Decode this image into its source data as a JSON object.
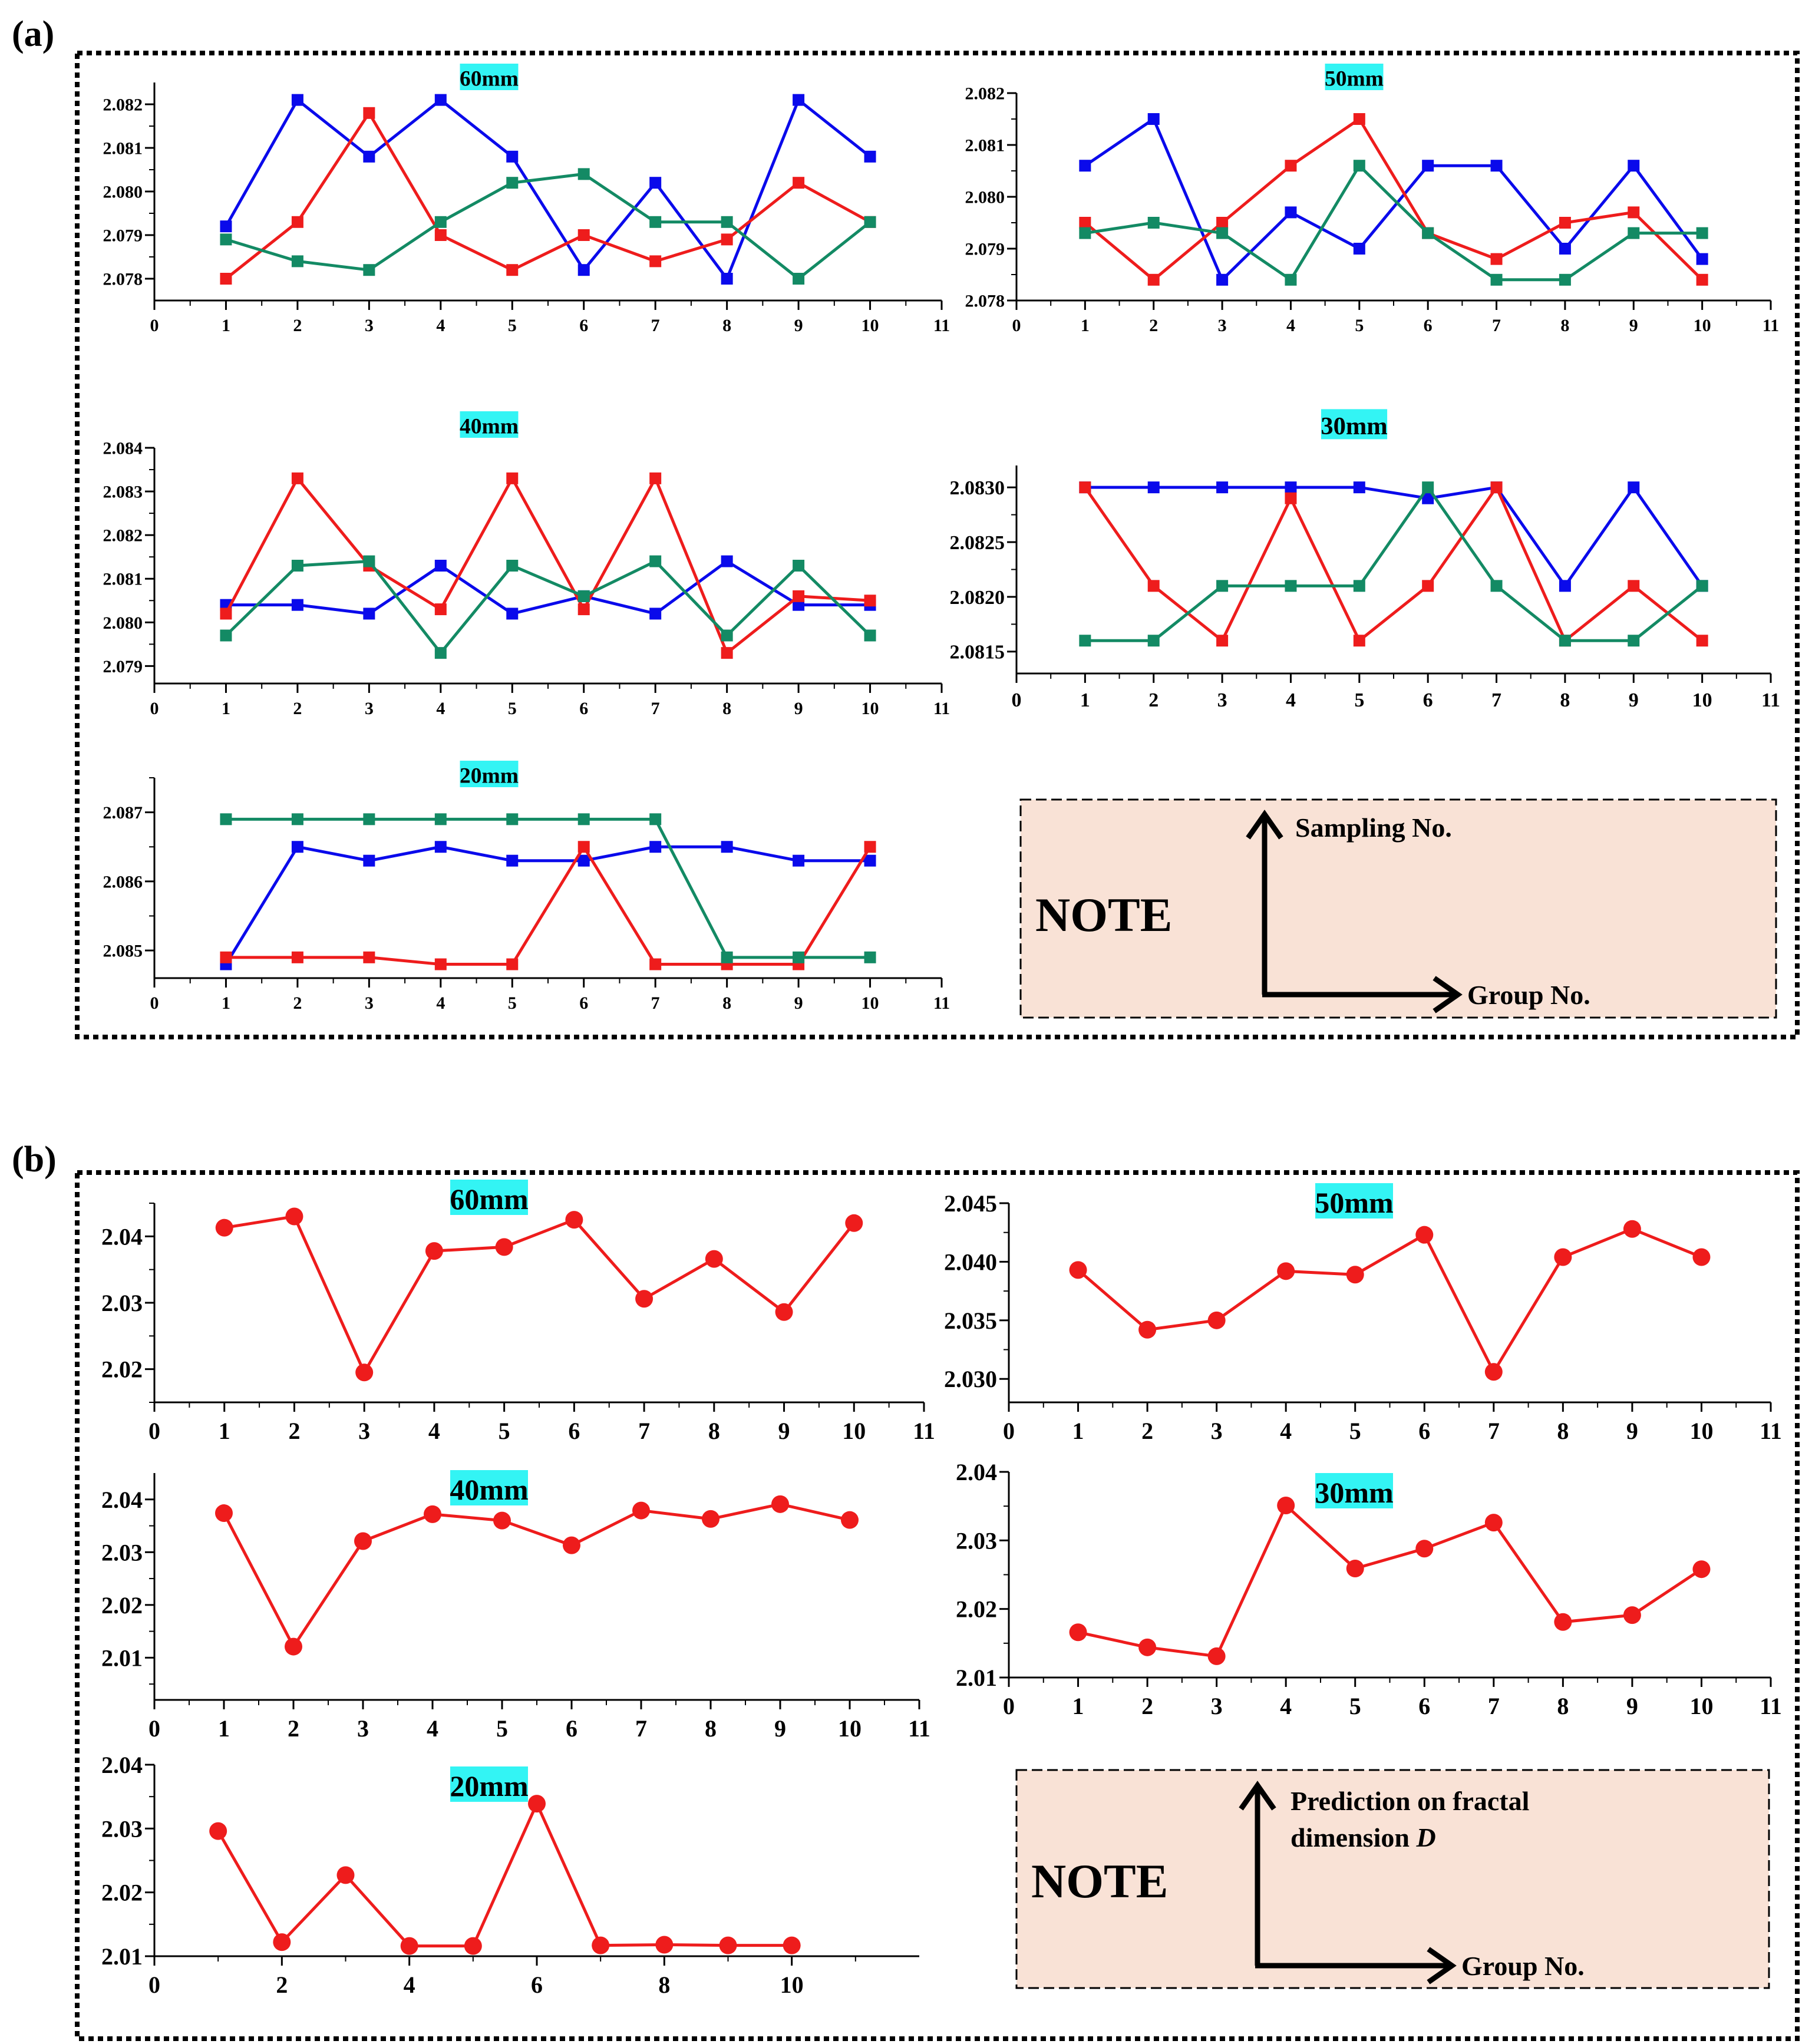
{
  "panels": [
    {
      "label": "(a)",
      "note": {
        "title": "NOTE",
        "y_axis_label": "Sampling No.",
        "x_axis_label": "Group No."
      }
    },
    {
      "label": "(b)",
      "note": {
        "title": "NOTE",
        "y_axis_label_lines": [
          "Prediction on fractal",
          "dimension "
        ],
        "y_axis_label_italic": "D",
        "x_axis_label": "Group No."
      }
    }
  ],
  "colors": {
    "blue": "#0a0aeb",
    "red": "#ee1c1c",
    "green": "#138a64",
    "title_bg": "#33f4f4",
    "note_bg": "#f9e2d6"
  },
  "chart_data": [
    {
      "id": "a-60mm",
      "panel": "(a)",
      "type": "line",
      "title": "60mm",
      "x": [
        1,
        2,
        3,
        4,
        5,
        6,
        7,
        8,
        9,
        10
      ],
      "xlim": [
        0,
        11
      ],
      "xticks": [
        0,
        1,
        2,
        3,
        4,
        5,
        6,
        7,
        8,
        9,
        10,
        11
      ],
      "xtick_labels": [
        "0",
        "1",
        "2",
        "3",
        "4",
        "5",
        "6",
        "7",
        "8",
        "9",
        "10",
        "11"
      ],
      "ylim": [
        2.0775,
        2.0825
      ],
      "yticks": [
        2.078,
        2.079,
        2.08,
        2.081,
        2.082
      ],
      "ytick_labels": [
        "2.078",
        "2.079",
        "2.080",
        "2.081",
        "2.082"
      ],
      "marker": "square",
      "series": [
        {
          "name": "blue",
          "color": "#0a0aeb",
          "values": [
            2.0792,
            2.0821,
            2.0808,
            2.0821,
            2.0808,
            2.0782,
            2.0802,
            2.078,
            2.0821,
            2.0808
          ]
        },
        {
          "name": "red",
          "color": "#ee1c1c",
          "values": [
            2.078,
            2.0793,
            2.0818,
            2.079,
            2.0782,
            2.079,
            2.0784,
            2.0789,
            2.0802,
            2.0793
          ]
        },
        {
          "name": "green",
          "color": "#138a64",
          "values": [
            2.0789,
            2.0784,
            2.0782,
            2.0793,
            2.0802,
            2.0804,
            2.0793,
            2.0793,
            2.078,
            2.0793
          ]
        }
      ]
    },
    {
      "id": "a-50mm",
      "panel": "(a)",
      "type": "line",
      "title": "50mm",
      "x": [
        1,
        2,
        3,
        4,
        5,
        6,
        7,
        8,
        9,
        10
      ],
      "xlim": [
        0,
        11
      ],
      "xticks": [
        0,
        1,
        2,
        3,
        4,
        5,
        6,
        7,
        8,
        9,
        10,
        11
      ],
      "xtick_labels": [
        "0",
        "1",
        "2",
        "3",
        "4",
        "5",
        "6",
        "7",
        "8",
        "9",
        "10",
        "11"
      ],
      "ylim": [
        2.078,
        2.082
      ],
      "yticks": [
        2.078,
        2.079,
        2.08,
        2.081,
        2.082
      ],
      "ytick_labels": [
        "2.078",
        "2.079",
        "2.080",
        "2.081",
        "2.082"
      ],
      "marker": "square",
      "series": [
        {
          "name": "blue",
          "color": "#0a0aeb",
          "values": [
            2.0806,
            2.0815,
            2.0784,
            2.0797,
            2.079,
            2.0806,
            2.0806,
            2.079,
            2.0806,
            2.0788
          ]
        },
        {
          "name": "red",
          "color": "#ee1c1c",
          "values": [
            2.0795,
            2.0784,
            2.0795,
            2.0806,
            2.0815,
            2.0793,
            2.0788,
            2.0795,
            2.0797,
            2.0784
          ]
        },
        {
          "name": "green",
          "color": "#138a64",
          "values": [
            2.0793,
            2.0795,
            2.0793,
            2.0784,
            2.0806,
            2.0793,
            2.0784,
            2.0784,
            2.0793,
            2.0793
          ]
        }
      ]
    },
    {
      "id": "a-40mm",
      "panel": "(a)",
      "type": "line",
      "title": "40mm",
      "x": [
        1,
        2,
        3,
        4,
        5,
        6,
        7,
        8,
        9,
        10
      ],
      "xlim": [
        0,
        11
      ],
      "xticks": [
        0,
        1,
        2,
        3,
        4,
        5,
        6,
        7,
        8,
        9,
        10,
        11
      ],
      "xtick_labels": [
        "0",
        "1",
        "2",
        "3",
        "4",
        "5",
        "6",
        "7",
        "8",
        "9",
        "10",
        "11"
      ],
      "ylim": [
        2.0786,
        2.084
      ],
      "yticks": [
        2.079,
        2.08,
        2.081,
        2.082,
        2.083,
        2.084
      ],
      "ytick_labels": [
        "2.079",
        "2.080",
        "2.081",
        "2.082",
        "2.083",
        "2.084"
      ],
      "marker": "square",
      "series": [
        {
          "name": "blue",
          "color": "#0a0aeb",
          "values": [
            2.0804,
            2.0804,
            2.0802,
            2.0813,
            2.0802,
            2.0806,
            2.0802,
            2.0814,
            2.0804,
            2.0804
          ]
        },
        {
          "name": "red",
          "color": "#ee1c1c",
          "values": [
            2.0802,
            2.0833,
            2.0813,
            2.0803,
            2.0833,
            2.0803,
            2.0833,
            2.0793,
            2.0806,
            2.0805
          ]
        },
        {
          "name": "green",
          "color": "#138a64",
          "values": [
            2.0797,
            2.0813,
            2.0814,
            2.0793,
            2.0813,
            2.0806,
            2.0814,
            2.0797,
            2.0813,
            2.0797
          ]
        }
      ]
    },
    {
      "id": "a-30mm",
      "panel": "(a)",
      "type": "line",
      "title": "30mm",
      "x": [
        1,
        2,
        3,
        4,
        5,
        6,
        7,
        8,
        9,
        10
      ],
      "xlim": [
        0,
        11
      ],
      "xticks": [
        0,
        1,
        2,
        3,
        4,
        5,
        6,
        7,
        8,
        9,
        10,
        11
      ],
      "xtick_labels": [
        "0",
        "1",
        "2",
        "3",
        "4",
        "5",
        "6",
        "7",
        "8",
        "9",
        "10",
        "11"
      ],
      "ylim": [
        2.0813,
        2.0832
      ],
      "yticks": [
        2.0815,
        2.082,
        2.0825,
        2.083
      ],
      "ytick_labels": [
        "2.0815",
        "2.0820",
        "2.0825",
        "2.0830"
      ],
      "marker": "square",
      "series": [
        {
          "name": "blue",
          "color": "#0a0aeb",
          "values": [
            2.083,
            2.083,
            2.083,
            2.083,
            2.083,
            2.0829,
            2.083,
            2.0821,
            2.083,
            2.0821
          ]
        },
        {
          "name": "red",
          "color": "#ee1c1c",
          "values": [
            2.083,
            2.0821,
            2.0816,
            2.0829,
            2.0816,
            2.0821,
            2.083,
            2.0816,
            2.0821,
            2.0816
          ]
        },
        {
          "name": "green",
          "color": "#138a64",
          "values": [
            2.0816,
            2.0816,
            2.0821,
            2.0821,
            2.0821,
            2.083,
            2.0821,
            2.0816,
            2.0816,
            2.0821
          ]
        }
      ]
    },
    {
      "id": "a-20mm",
      "panel": "(a)",
      "type": "line",
      "title": "20mm",
      "x": [
        1,
        2,
        3,
        4,
        5,
        6,
        7,
        8,
        9,
        10
      ],
      "xlim": [
        0,
        11
      ],
      "xticks": [
        0,
        1,
        2,
        3,
        4,
        5,
        6,
        7,
        8,
        9,
        10,
        11
      ],
      "xtick_labels": [
        "0",
        "1",
        "2",
        "3",
        "4",
        "5",
        "6",
        "7",
        "8",
        "9",
        "10",
        "11"
      ],
      "ylim": [
        2.0846,
        2.0875
      ],
      "yticks": [
        2.085,
        2.086,
        2.087
      ],
      "ytick_labels": [
        "2.085",
        "2.086",
        "2.087"
      ],
      "marker": "square",
      "series": [
        {
          "name": "blue",
          "color": "#0a0aeb",
          "values": [
            2.0848,
            2.0865,
            2.0863,
            2.0865,
            2.0863,
            2.0863,
            2.0865,
            2.0865,
            2.0863,
            2.0863
          ]
        },
        {
          "name": "red",
          "color": "#ee1c1c",
          "values": [
            2.0849,
            2.0849,
            2.0849,
            2.0848,
            2.0848,
            2.0865,
            2.0848,
            2.0848,
            2.0848,
            2.0865
          ]
        },
        {
          "name": "green",
          "color": "#138a64",
          "values": [
            2.0869,
            2.0869,
            2.0869,
            2.0869,
            2.0869,
            2.0869,
            2.0869,
            2.0849,
            2.0849,
            2.0849
          ]
        }
      ]
    },
    {
      "id": "b-60mm",
      "panel": "(b)",
      "type": "line",
      "title": "60mm",
      "x": [
        1,
        2,
        3,
        4,
        5,
        6,
        7,
        8,
        9,
        10
      ],
      "xlim": [
        0,
        11
      ],
      "xticks": [
        0,
        1,
        2,
        3,
        4,
        5,
        6,
        7,
        8,
        9,
        10,
        11
      ],
      "xtick_labels": [
        "0",
        "1",
        "2",
        "3",
        "4",
        "5",
        "6",
        "7",
        "8",
        "9",
        "10",
        "11"
      ],
      "ylim": [
        2.015,
        2.045
      ],
      "yticks": [
        2.02,
        2.03,
        2.04
      ],
      "ytick_labels": [
        "2.02",
        "2.03",
        "2.04"
      ],
      "marker": "circle",
      "series": [
        {
          "name": "prediction",
          "color": "#ee1c1c",
          "values": [
            2.0413,
            2.043,
            2.0195,
            2.0378,
            2.0384,
            2.0425,
            2.0306,
            2.0366,
            2.0286,
            2.042
          ]
        }
      ]
    },
    {
      "id": "b-50mm",
      "panel": "(b)",
      "type": "line",
      "title": "50mm",
      "x": [
        1,
        2,
        3,
        4,
        5,
        6,
        7,
        8,
        9,
        10
      ],
      "xlim": [
        0,
        11
      ],
      "xticks": [
        0,
        1,
        2,
        3,
        4,
        5,
        6,
        7,
        8,
        9,
        10,
        11
      ],
      "xtick_labels": [
        "0",
        "1",
        "2",
        "3",
        "4",
        "5",
        "6",
        "7",
        "8",
        "9",
        "10",
        "11"
      ],
      "ylim": [
        2.028,
        2.045
      ],
      "yticks": [
        2.03,
        2.035,
        2.04,
        2.045
      ],
      "ytick_labels": [
        "2.030",
        "2.035",
        "2.040",
        "2.045"
      ],
      "marker": "circle",
      "series": [
        {
          "name": "prediction",
          "color": "#ee1c1c",
          "values": [
            2.0393,
            2.0342,
            2.035,
            2.0392,
            2.0389,
            2.0423,
            2.0306,
            2.0404,
            2.0428,
            2.0404
          ]
        }
      ]
    },
    {
      "id": "b-40mm",
      "panel": "(b)",
      "type": "line",
      "title": "40mm",
      "x": [
        1,
        2,
        3,
        4,
        5,
        6,
        7,
        8,
        9,
        10
      ],
      "xlim": [
        0,
        11
      ],
      "xticks": [
        0,
        1,
        2,
        3,
        4,
        5,
        6,
        7,
        8,
        9,
        10,
        11
      ],
      "xtick_labels": [
        "0",
        "1",
        "2",
        "3",
        "4",
        "5",
        "6",
        "7",
        "8",
        "9",
        "10",
        "11"
      ],
      "ylim": [
        2.002,
        2.045
      ],
      "yticks": [
        2.01,
        2.02,
        2.03,
        2.04
      ],
      "ytick_labels": [
        "2.01",
        "2.02",
        "2.03",
        "2.04"
      ],
      "marker": "circle",
      "series": [
        {
          "name": "prediction",
          "color": "#ee1c1c",
          "values": [
            2.0374,
            2.0121,
            2.0321,
            2.0372,
            2.036,
            2.0313,
            2.0379,
            2.0363,
            2.0391,
            2.0361
          ]
        }
      ]
    },
    {
      "id": "b-30mm",
      "panel": "(b)",
      "type": "line",
      "title": "30mm",
      "x": [
        1,
        2,
        3,
        4,
        5,
        6,
        7,
        8,
        9,
        10
      ],
      "xlim": [
        0,
        11
      ],
      "xticks": [
        0,
        1,
        2,
        3,
        4,
        5,
        6,
        7,
        8,
        9,
        10,
        11
      ],
      "xtick_labels": [
        "0",
        "1",
        "2",
        "3",
        "4",
        "5",
        "6",
        "7",
        "8",
        "9",
        "10",
        "11"
      ],
      "ylim": [
        2.01,
        2.04
      ],
      "yticks": [
        2.01,
        2.02,
        2.03,
        2.04
      ],
      "ytick_labels": [
        "2.01",
        "2.02",
        "2.03",
        "2.04"
      ],
      "marker": "circle",
      "series": [
        {
          "name": "prediction",
          "color": "#ee1c1c",
          "values": [
            2.0166,
            2.0144,
            2.0131,
            2.0351,
            2.0259,
            2.0288,
            2.0326,
            2.0181,
            2.0191,
            2.0258
          ]
        }
      ]
    },
    {
      "id": "b-20mm",
      "panel": "(b)",
      "type": "line",
      "title": "20mm",
      "x": [
        1,
        2,
        3,
        4,
        5,
        6,
        7,
        8,
        9,
        10
      ],
      "xlim": [
        0,
        12
      ],
      "xticks": [
        0,
        2,
        4,
        6,
        8,
        10
      ],
      "xtick_labels": [
        "0",
        "2",
        "4",
        "6",
        "8",
        "10"
      ],
      "ylim": [
        2.01,
        2.04
      ],
      "yticks": [
        2.01,
        2.02,
        2.03,
        2.04
      ],
      "ytick_labels": [
        "2.01",
        "2.02",
        "2.03",
        "2.04"
      ],
      "marker": "circle",
      "series": [
        {
          "name": "prediction",
          "color": "#ee1c1c",
          "values": [
            2.0296,
            2.0122,
            2.0227,
            2.0116,
            2.0116,
            2.0339,
            2.0117,
            2.0118,
            2.0117,
            2.0117
          ]
        }
      ]
    }
  ]
}
